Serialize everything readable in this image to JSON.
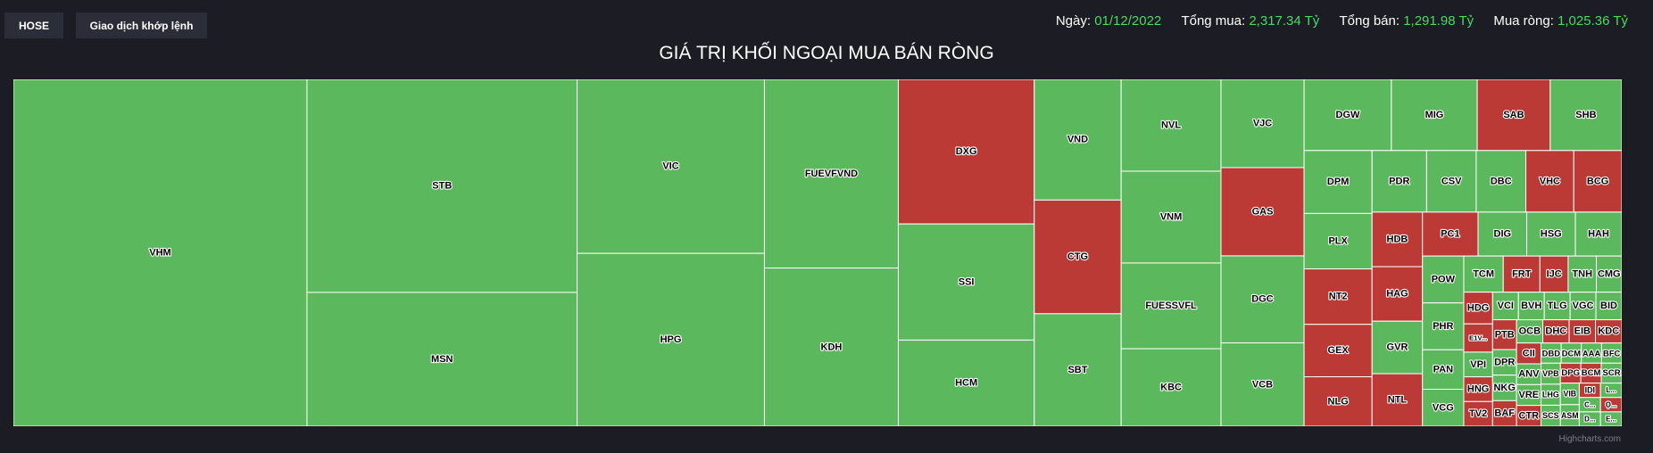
{
  "toolbar": {
    "exchange_label": "HOSE",
    "trade_label": "Giao dịch khớp lệnh"
  },
  "summary": {
    "date_label": "Ngày:",
    "date": "01/12/2022",
    "buy_label": "Tổng mua:",
    "buy": "2,317.34 Tỷ",
    "sell_label": "Tổng bán:",
    "sell": "1,291.98 Tỷ",
    "net_label": "Mua ròng:",
    "net": "1,025.36 Tỷ"
  },
  "credit": "Highcharts.com",
  "colors": {
    "positive": "#5cb85c",
    "negative": "#bc3a35",
    "background": "#1b1c24",
    "border": "#ffffff"
  },
  "chart_data": {
    "type": "treemap",
    "title": "GIÁ TRỊ KHỐI NGOẠI MUA BÁN RÒNG",
    "value_note": "relative net-value magnitude estimated from tile areas; sign: buy = net buying, sell = net selling",
    "nodes": [
      {
        "name": "VHM",
        "value": 1000,
        "side": "buy"
      },
      {
        "name": "STB",
        "value": 565,
        "side": "buy"
      },
      {
        "name": "MSN",
        "value": 355,
        "side": "buy"
      },
      {
        "name": "VIC",
        "value": 320,
        "side": "buy"
      },
      {
        "name": "HPG",
        "value": 318,
        "side": "buy"
      },
      {
        "name": "FUEVFVND",
        "value": 248,
        "side": "buy"
      },
      {
        "name": "DXG",
        "value": 193,
        "side": "sell"
      },
      {
        "name": "KDH",
        "value": 208,
        "side": "buy"
      },
      {
        "name": "SSI",
        "value": 155,
        "side": "buy"
      },
      {
        "name": "VND",
        "value": 103,
        "side": "buy"
      },
      {
        "name": "CTG",
        "value": 97,
        "side": "sell"
      },
      {
        "name": "SBT",
        "value": 96,
        "side": "buy"
      },
      {
        "name": "NVL",
        "value": 90,
        "side": "buy"
      },
      {
        "name": "VNM",
        "value": 90,
        "side": "buy"
      },
      {
        "name": "FUESSVFL",
        "value": 84,
        "side": "buy"
      },
      {
        "name": "KBC",
        "value": 76,
        "side": "buy"
      },
      {
        "name": "VJC",
        "value": 72,
        "side": "buy"
      },
      {
        "name": "GAS",
        "value": 72,
        "side": "sell"
      },
      {
        "name": "VCB",
        "value": 68,
        "side": "buy"
      },
      {
        "name": "HCM",
        "value": 115,
        "side": "buy"
      },
      {
        "name": "DGC",
        "value": 71,
        "side": "buy"
      },
      {
        "name": "DGW",
        "value": 61,
        "side": "buy"
      },
      {
        "name": "MIG",
        "value": 60,
        "side": "buy"
      },
      {
        "name": "SAB",
        "value": 51,
        "side": "sell"
      },
      {
        "name": "DPM",
        "value": 42,
        "side": "buy"
      },
      {
        "name": "PLX",
        "value": 37,
        "side": "buy"
      },
      {
        "name": "NT2",
        "value": 37,
        "side": "sell"
      },
      {
        "name": "GEX",
        "value": 35,
        "side": "sell"
      },
      {
        "name": "NLG",
        "value": 33,
        "side": "sell"
      },
      {
        "name": "PDR",
        "value": 33,
        "side": "buy"
      },
      {
        "name": "CSV",
        "value": 30,
        "side": "buy"
      },
      {
        "name": "DBC",
        "value": 30,
        "side": "buy"
      },
      {
        "name": "VHC",
        "value": 29,
        "side": "sell"
      },
      {
        "name": "BCG",
        "value": 29,
        "side": "sell"
      },
      {
        "name": "HDB",
        "value": 27,
        "side": "sell"
      },
      {
        "name": "HAG",
        "value": 27,
        "side": "sell"
      },
      {
        "name": "SHB",
        "value": 50,
        "side": "buy"
      },
      {
        "name": "GVR",
        "value": 26,
        "side": "buy"
      },
      {
        "name": "NTL",
        "value": 26,
        "side": "sell"
      },
      {
        "name": "PC1",
        "value": 24,
        "side": "sell"
      },
      {
        "name": "DIG",
        "value": 21,
        "side": "buy"
      },
      {
        "name": "HSG",
        "value": 21,
        "side": "buy"
      },
      {
        "name": "HAH",
        "value": 20,
        "side": "buy"
      },
      {
        "name": "POW",
        "value": 19,
        "side": "buy"
      },
      {
        "name": "PHR",
        "value": 19,
        "side": "buy"
      },
      {
        "name": "PAN",
        "value": 16,
        "side": "buy"
      },
      {
        "name": "VCG",
        "value": 15,
        "side": "buy"
      },
      {
        "name": "TCM",
        "value": 14,
        "side": "buy"
      },
      {
        "name": "FRT",
        "value": 13,
        "side": "sell"
      },
      {
        "name": "IJC",
        "value": 10,
        "side": "sell"
      },
      {
        "name": "TNH",
        "value": 10,
        "side": "buy"
      },
      {
        "name": "CMG",
        "value": 9,
        "side": "buy"
      },
      {
        "name": "E1V...",
        "value": 8,
        "side": "sell"
      },
      {
        "name": "VPI",
        "value": 7,
        "side": "buy"
      },
      {
        "name": "HNG",
        "value": 7,
        "side": "sell"
      },
      {
        "name": "TV2",
        "value": 7,
        "side": "sell"
      },
      {
        "name": "DPR",
        "value": 6,
        "side": "buy"
      },
      {
        "name": "NKG",
        "value": 6,
        "side": "buy"
      },
      {
        "name": "BAF",
        "value": 6,
        "side": "sell"
      },
      {
        "name": "HDG",
        "value": 9,
        "side": "sell"
      },
      {
        "name": "IDI",
        "value": 3,
        "side": "sell"
      },
      {
        "name": "VCI",
        "value": 7,
        "side": "buy"
      },
      {
        "name": "BVH",
        "value": 7,
        "side": "buy"
      },
      {
        "name": "TLG",
        "value": 7,
        "side": "buy"
      },
      {
        "name": "VGC",
        "value": 7,
        "side": "buy"
      },
      {
        "name": "BID",
        "value": 7,
        "side": "buy"
      },
      {
        "name": "PTB",
        "value": 7,
        "side": "sell"
      },
      {
        "name": "OCB",
        "value": 6,
        "side": "buy"
      },
      {
        "name": "DHC",
        "value": 6,
        "side": "sell"
      },
      {
        "name": "CII",
        "value": 5,
        "side": "sell"
      },
      {
        "name": "EIB",
        "value": 6,
        "side": "sell"
      },
      {
        "name": "KDC",
        "value": 6,
        "side": "sell"
      },
      {
        "name": "ANV",
        "value": 5,
        "side": "buy"
      },
      {
        "name": "VRE",
        "value": 5,
        "side": "buy"
      },
      {
        "name": "CTR",
        "value": 5,
        "side": "sell"
      },
      {
        "name": "DBD",
        "value": 4,
        "side": "buy"
      },
      {
        "name": "DCM",
        "value": 4,
        "side": "buy"
      },
      {
        "name": "AAA",
        "value": 4,
        "side": "buy"
      },
      {
        "name": "BFC",
        "value": 4,
        "side": "buy"
      },
      {
        "name": "VPB",
        "value": 4,
        "side": "buy"
      },
      {
        "name": "LHG",
        "value": 4,
        "side": "buy"
      },
      {
        "name": "SCS",
        "value": 4,
        "side": "buy"
      },
      {
        "name": "DPG",
        "value": 4,
        "side": "sell"
      },
      {
        "name": "BCM",
        "value": 4,
        "side": "sell"
      },
      {
        "name": "SCR",
        "value": 4,
        "side": "buy"
      },
      {
        "name": "VIB",
        "value": 4,
        "side": "buy"
      },
      {
        "name": "ASM",
        "value": 4,
        "side": "buy"
      },
      {
        "name": "L...",
        "value": 3,
        "side": "buy"
      },
      {
        "name": "C...",
        "value": 3,
        "side": "buy"
      },
      {
        "name": "D...",
        "value": 3,
        "side": "buy"
      },
      {
        "name": "Ọ...",
        "value": 3,
        "side": "sell"
      },
      {
        "name": "E...",
        "value": 3,
        "side": "buy"
      }
    ]
  }
}
